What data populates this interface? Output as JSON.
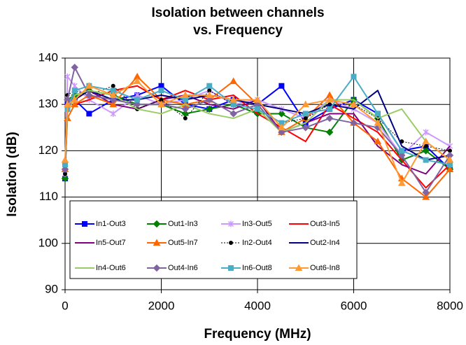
{
  "chart_data": {
    "type": "line",
    "title": [
      "Isolation between channels",
      "vs. Frequency"
    ],
    "x_label": "Frequency (MHz)",
    "y_label": "Isolation (dB)",
    "x": [
      0,
      50,
      200,
      500,
      1000,
      1500,
      2000,
      2500,
      3000,
      3500,
      4000,
      4500,
      5000,
      5500,
      6000,
      6500,
      7000,
      7500,
      8000
    ],
    "xlim": [
      0,
      8000
    ],
    "xticks": [
      0,
      2000,
      4000,
      6000,
      8000
    ],
    "ylim": [
      90,
      140
    ],
    "yticks": [
      90,
      100,
      110,
      120,
      130,
      140
    ],
    "grid": true,
    "series": [
      {
        "name": "In1-Out3",
        "color": "#0000ff",
        "marker": "square",
        "values": [
          114,
          130,
          131,
          128,
          131,
          132,
          134,
          130,
          129,
          131,
          130,
          134,
          126,
          129,
          131,
          128,
          120,
          121,
          116
        ]
      },
      {
        "name": "Out1-In3",
        "color": "#008000",
        "marker": "diamond",
        "values": [
          114,
          131,
          132,
          133,
          132,
          130,
          130,
          128,
          129,
          130,
          128,
          128,
          125,
          124,
          131,
          127,
          118,
          120,
          116
        ]
      },
      {
        "name": "In3-Out5",
        "color": "#cc99ff",
        "marker": "star",
        "values": [
          115,
          136,
          134,
          131,
          128,
          132,
          130,
          131,
          133,
          130,
          131,
          129,
          127,
          131,
          129,
          126,
          119,
          124,
          121
        ]
      },
      {
        "name": "Out3-In5",
        "color": "#ff0000",
        "marker": "none",
        "values": [
          115,
          130,
          130,
          131,
          133,
          134,
          131,
          133,
          131,
          132,
          128,
          125,
          122,
          130,
          127,
          124,
          118,
          112,
          117
        ]
      },
      {
        "name": "In5-Out7",
        "color": "#800080",
        "marker": "none",
        "values": [
          115,
          129,
          132,
          133,
          130,
          129,
          131,
          132,
          130,
          129,
          131,
          124,
          126,
          128,
          128,
          121,
          117,
          115,
          121
        ]
      },
      {
        "name": "Out5-In7",
        "color": "#ff6600",
        "marker": "triangle",
        "values": [
          116,
          127,
          130,
          132,
          130,
          136,
          131,
          130,
          131,
          135,
          130,
          124,
          127,
          132,
          126,
          122,
          114,
          110,
          116
        ]
      },
      {
        "name": "In2-Out4",
        "color": "#000000",
        "marker": "circle",
        "dash": true,
        "values": [
          115,
          132,
          133,
          132,
          134,
          129,
          131,
          127,
          133,
          130,
          129,
          126,
          127,
          130,
          130,
          127,
          122,
          121,
          120
        ]
      },
      {
        "name": "Out2-In4",
        "color": "#000080",
        "marker": "none",
        "values": [
          116,
          130,
          131,
          133,
          131,
          131,
          132,
          131,
          132,
          131,
          130,
          129,
          128,
          130,
          129,
          133,
          121,
          118,
          119
        ]
      },
      {
        "name": "In4-Out6",
        "color": "#99cc66",
        "marker": "none",
        "values": [
          117,
          128,
          132,
          133,
          132,
          129,
          128,
          130,
          128,
          127,
          129,
          124,
          126,
          131,
          131,
          127,
          129,
          122,
          118
        ]
      },
      {
        "name": "Out4-In6",
        "color": "#8064a2",
        "marker": "diamond",
        "values": [
          116,
          131,
          138,
          132,
          131,
          130,
          130,
          129,
          131,
          128,
          130,
          124,
          125,
          127,
          126,
          125,
          119,
          111,
          119
        ]
      },
      {
        "name": "In6-Out8",
        "color": "#4bacc6",
        "marker": "square",
        "values": [
          117,
          129,
          133,
          134,
          133,
          131,
          133,
          131,
          134,
          130,
          129,
          126,
          128,
          129,
          136,
          128,
          120,
          118,
          117
        ]
      },
      {
        "name": "Out6-In8",
        "color": "#ff9933",
        "marker": "triangle",
        "values": [
          118,
          130,
          131,
          134,
          132,
          135,
          130,
          132,
          132,
          131,
          131,
          125,
          130,
          131,
          130,
          126,
          113,
          122,
          118
        ]
      }
    ]
  }
}
